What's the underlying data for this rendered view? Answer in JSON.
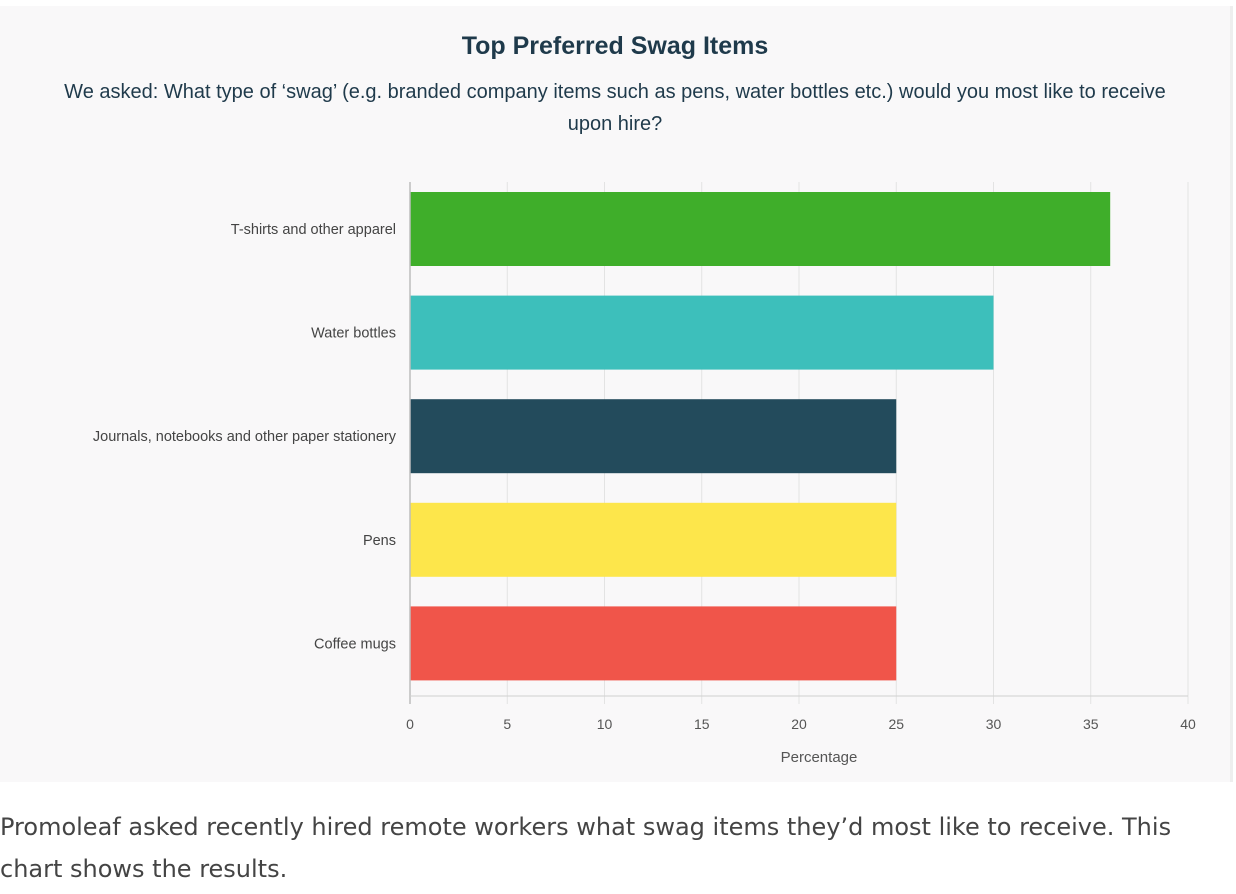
{
  "chart_data": {
    "type": "bar",
    "orientation": "horizontal",
    "title": "Top Preferred Swag Items",
    "subtitle": "We asked: What type of ‘swag’ (e.g. branded company items such as pens, water bottles etc.) would you most like to receive upon hire?",
    "categories": [
      "T-shirts and other apparel",
      "Water bottles",
      "Journals, notebooks and other paper stationery",
      "Pens",
      "Coffee mugs"
    ],
    "values": [
      36,
      30,
      25,
      25,
      25
    ],
    "colors": [
      "#3fae2a",
      "#3dbfbb",
      "#234b5c",
      "#fde64b",
      "#f0554a"
    ],
    "xlabel": "Percentage",
    "ylabel": "",
    "xlim": [
      0,
      40
    ],
    "xticks": [
      "0",
      "5",
      "10",
      "15",
      "20",
      "25",
      "30",
      "35",
      "40"
    ],
    "grid": true,
    "legend": "none"
  },
  "caption": "Promoleaf asked recently hired remote workers what swag items they’d most like to receive. This chart shows the results."
}
